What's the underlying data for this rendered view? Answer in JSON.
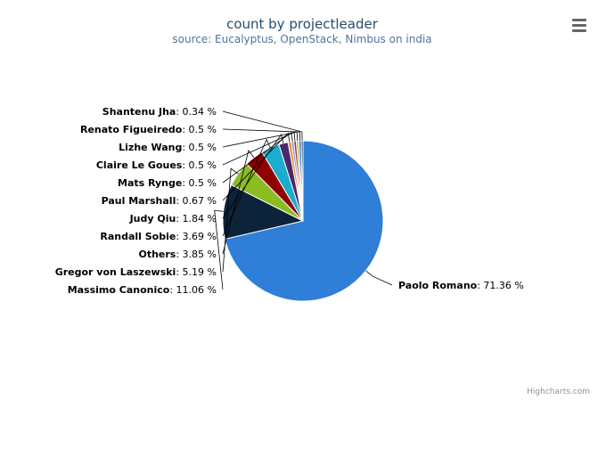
{
  "chart_data": {
    "type": "pie",
    "title": "count by projectleader",
    "subtitle": "source: Eucalyptus, OpenStack, Nimbus on india",
    "slices": [
      {
        "name": "Paolo Romano",
        "value": 71.36,
        "label_suffix": ": 71.36 %",
        "color": "#2f7ed8"
      },
      {
        "name": "Massimo Canonico",
        "value": 11.06,
        "label_suffix": ": 11.06 %",
        "color": "#0d233a"
      },
      {
        "name": "Gregor von Laszewski",
        "value": 5.19,
        "label_suffix": ": 5.19 %",
        "color": "#8bbc21"
      },
      {
        "name": "Others",
        "value": 3.85,
        "label_suffix": ": 3.85 %",
        "color": "#910000"
      },
      {
        "name": "Randall Sobie",
        "value": 3.69,
        "label_suffix": ": 3.69 %",
        "color": "#1aadce"
      },
      {
        "name": "Judy Qiu",
        "value": 1.84,
        "label_suffix": ": 1.84 %",
        "color": "#492970"
      },
      {
        "name": "Paul Marshall",
        "value": 0.67,
        "label_suffix": ": 0.67 %",
        "color": "#f28f43"
      },
      {
        "name": "Mats Rynge",
        "value": 0.5,
        "label_suffix": ": 0.5 %",
        "color": "#77a1e5"
      },
      {
        "name": "Claire Le Goues",
        "value": 0.5,
        "label_suffix": ": 0.5 %",
        "color": "#c42525"
      },
      {
        "name": "Lizhe Wang",
        "value": 0.5,
        "label_suffix": ": 0.5 %",
        "color": "#a6c96a"
      },
      {
        "name": "Renato Figueiredo",
        "value": 0.5,
        "label_suffix": ": 0.5 %",
        "color": "#2f7ed8"
      },
      {
        "name": "Shantenu Jha",
        "value": 0.34,
        "label_suffix": ": 0.34 %",
        "color": "#0d233a"
      }
    ]
  },
  "colors": {
    "title": "#274b6d",
    "subtitle": "#4d759e",
    "label": "#000000",
    "connector": "#000000",
    "credits": "#909090"
  },
  "credits": "Highcharts.com",
  "menu_icon": "hamburger-menu-icon"
}
